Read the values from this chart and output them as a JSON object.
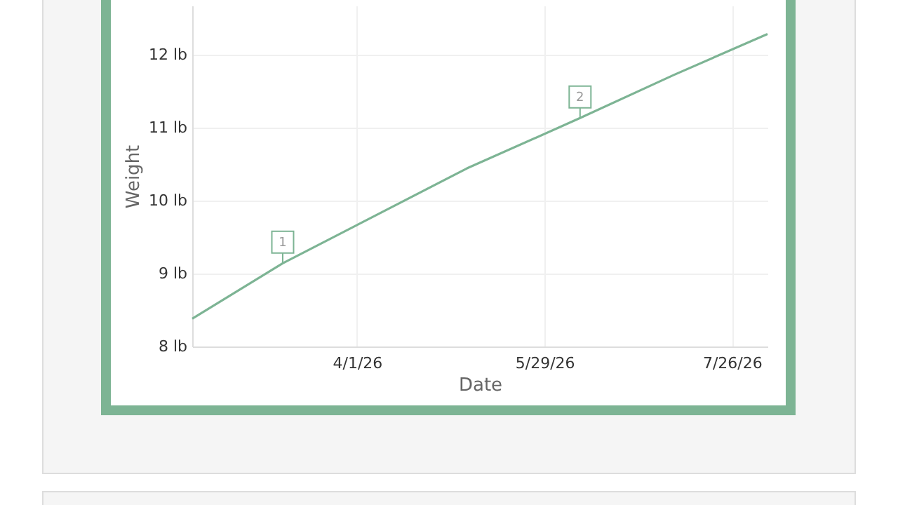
{
  "chart_data": {
    "type": "line",
    "xlabel": "Date",
    "ylabel": "Weight",
    "x": [
      "2026-02-09",
      "2026-03-09",
      "2026-05-05",
      "2026-06-09",
      "2026-07-08",
      "2026-08-06"
    ],
    "series": [
      {
        "color": "#7db494",
        "values": [
          8.38,
          9.14,
          10.44,
          11.13,
          11.72,
          12.28
        ]
      }
    ],
    "xlim": [
      "2026-02-09",
      "2026-08-06"
    ],
    "xticks": [
      {
        "value": "2026-04-01",
        "label": "4/1/26"
      },
      {
        "value": "2026-05-29",
        "label": "5/29/26"
      },
      {
        "value": "2026-07-26",
        "label": "7/26/26"
      }
    ],
    "ylim": [
      8,
      12.67
    ],
    "yticks": [
      {
        "value": 8,
        "label": "8 lb"
      },
      {
        "value": 9,
        "label": "9 lb"
      },
      {
        "value": 10,
        "label": "10 lb"
      },
      {
        "value": 11,
        "label": "11 lb"
      },
      {
        "value": 12,
        "label": "12 lb"
      }
    ],
    "annotations": [
      {
        "text": "1",
        "x": "2026-03-09",
        "y": 9.14
      },
      {
        "text": "2",
        "x": "2026-06-09",
        "y": 11.13
      }
    ],
    "grid": true,
    "marker": "none",
    "line_style": "solid"
  }
}
